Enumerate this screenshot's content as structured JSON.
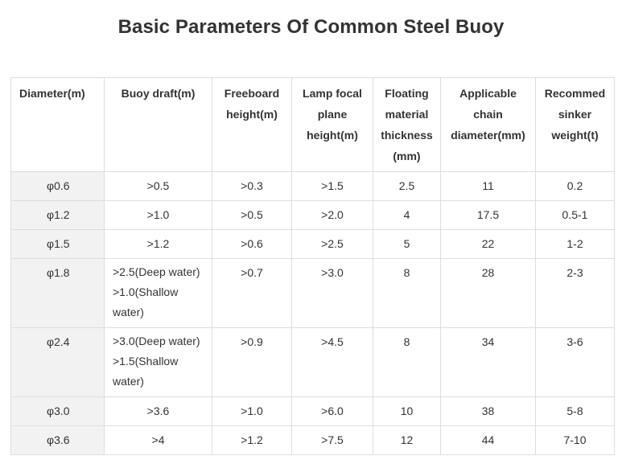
{
  "title": "Basic Parameters Of Common Steel Buoy",
  "table": {
    "headers": [
      "Diameter(m)",
      "Buoy draft(m)",
      "Freeboard height(m)",
      "Lamp focal plane height(m)",
      "Floating material thickness (mm)",
      "Applicable chain diameter(mm)",
      "Recommed sinker weight(t)"
    ],
    "rows": [
      {
        "diameter": "φ0.6",
        "draft": [
          ">0.5"
        ],
        "freeboard": ">0.3",
        "lamp": ">1.5",
        "thickness": "2.5",
        "chain": "11",
        "sinker": "0.2"
      },
      {
        "diameter": "φ1.2",
        "draft": [
          ">1.0"
        ],
        "freeboard": ">0.5",
        "lamp": ">2.0",
        "thickness": "4",
        "chain": "17.5",
        "sinker": "0.5-1"
      },
      {
        "diameter": "φ1.5",
        "draft": [
          ">1.2"
        ],
        "freeboard": ">0.6",
        "lamp": ">2.5",
        "thickness": "5",
        "chain": "22",
        "sinker": "1-2"
      },
      {
        "diameter": "φ1.8",
        "draft": [
          ">2.5(Deep water)",
          ">1.0(Shallow",
          "water)"
        ],
        "freeboard": ">0.7",
        "lamp": ">3.0",
        "thickness": "8",
        "chain": "28",
        "sinker": "2-3"
      },
      {
        "diameter": "φ2.4",
        "draft": [
          ">3.0(Deep water)",
          ">1.5(Shallow",
          "water)"
        ],
        "freeboard": ">0.9",
        "lamp": ">4.5",
        "thickness": "8",
        "chain": "34",
        "sinker": "3-6"
      },
      {
        "diameter": "φ3.0",
        "draft": [
          ">3.6"
        ],
        "freeboard": ">1.0",
        "lamp": ">6.0",
        "thickness": "10",
        "chain": "38",
        "sinker": "5-8"
      },
      {
        "diameter": "φ3.6",
        "draft": [
          ">4"
        ],
        "freeboard": ">1.2",
        "lamp": ">7.5",
        "thickness": "12",
        "chain": "44",
        "sinker": "7-10"
      }
    ]
  }
}
